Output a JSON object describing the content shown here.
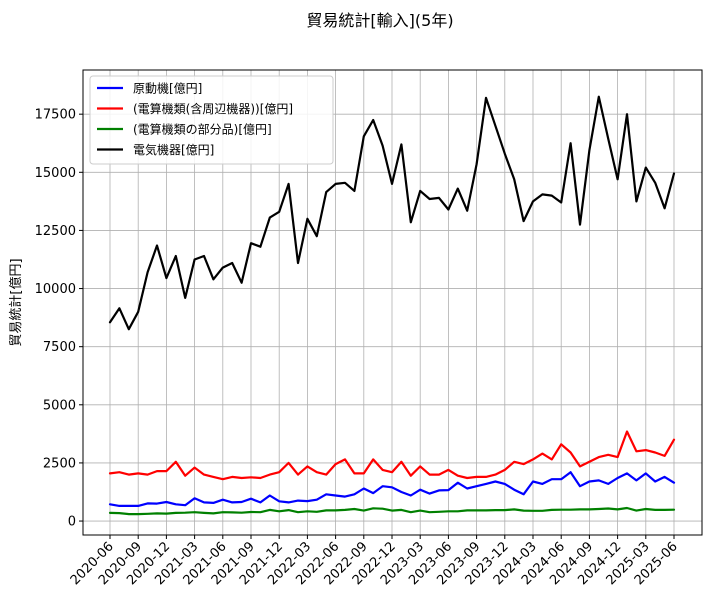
{
  "chart_data": {
    "type": "line",
    "title": "貿易統計[輸入](5年)",
    "xlabel": "",
    "ylabel": "貿易統計[億円]",
    "ylim": [
      -600,
      19400
    ],
    "yticks": [
      0,
      2500,
      5000,
      7500,
      10000,
      12500,
      15000,
      17500
    ],
    "ytick_labels": [
      "0",
      "2500",
      "5000",
      "7500",
      "10000",
      "12500",
      "15000",
      "17500"
    ],
    "xtick_labels": [
      "2020-06",
      "2020-09",
      "2020-12",
      "2021-03",
      "2021-06",
      "2021-09",
      "2021-12",
      "2022-03",
      "2022-06",
      "2022-09",
      "2022-12",
      "2023-03",
      "2023-06",
      "2023-09",
      "2023-12",
      "2024-03",
      "2024-06",
      "2024-09",
      "2024-12",
      "2025-03",
      "2025-06"
    ],
    "grid": true,
    "legend_position": "top-left",
    "x": [
      "2020-06",
      "2020-07",
      "2020-08",
      "2020-09",
      "2020-10",
      "2020-11",
      "2020-12",
      "2021-01",
      "2021-02",
      "2021-03",
      "2021-04",
      "2021-05",
      "2021-06",
      "2021-07",
      "2021-08",
      "2021-09",
      "2021-10",
      "2021-11",
      "2021-12",
      "2022-01",
      "2022-02",
      "2022-03",
      "2022-04",
      "2022-05",
      "2022-06",
      "2022-07",
      "2022-08",
      "2022-09",
      "2022-10",
      "2022-11",
      "2022-12",
      "2023-01",
      "2023-02",
      "2023-03",
      "2023-04",
      "2023-05",
      "2023-06",
      "2023-07",
      "2023-08",
      "2023-09",
      "2023-10",
      "2023-11",
      "2023-12",
      "2024-01",
      "2024-02",
      "2024-03",
      "2024-04",
      "2024-05",
      "2024-06",
      "2024-07",
      "2024-08",
      "2024-09",
      "2024-10",
      "2024-11",
      "2024-12",
      "2025-01",
      "2025-02",
      "2025-03",
      "2025-04",
      "2025-05",
      "2025-06"
    ],
    "series": [
      {
        "name": "原動機[億円]",
        "color": "#0000ff",
        "values": [
          720,
          650,
          650,
          650,
          760,
          750,
          820,
          720,
          680,
          980,
          800,
          780,
          920,
          800,
          820,
          960,
          800,
          1100,
          850,
          800,
          880,
          860,
          920,
          1150,
          1100,
          1050,
          1150,
          1400,
          1200,
          1500,
          1450,
          1250,
          1100,
          1350,
          1180,
          1320,
          1330,
          1650,
          1400,
          1500,
          1600,
          1700,
          1600,
          1350,
          1150,
          1700,
          1600,
          1800,
          1800,
          2100,
          1500,
          1700,
          1750,
          1600,
          1850,
          2050,
          1750,
          2050,
          1700,
          1900,
          1650
        ]
      },
      {
        "name": "(電算機類(含周辺機器))[億円]",
        "color": "#ff0000",
        "values": [
          2050,
          2100,
          2000,
          2050,
          2000,
          2150,
          2150,
          2550,
          1950,
          2300,
          2000,
          1900,
          1800,
          1900,
          1850,
          1880,
          1850,
          2000,
          2100,
          2500,
          2000,
          2350,
          2100,
          2000,
          2450,
          2650,
          2050,
          2050,
          2650,
          2200,
          2100,
          2550,
          1950,
          2350,
          2000,
          2000,
          2200,
          1950,
          1850,
          1900,
          1900,
          2000,
          2200,
          2550,
          2450,
          2650,
          2900,
          2650,
          3300,
          2950,
          2350,
          2550,
          2750,
          2850,
          2750,
          3850,
          3000,
          3050,
          2950,
          2800,
          3500
        ]
      },
      {
        "name": "(電算機類の部分品)[億円]",
        "color": "#008000",
        "values": [
          350,
          340,
          300,
          300,
          310,
          330,
          320,
          350,
          360,
          380,
          350,
          330,
          380,
          370,
          360,
          390,
          380,
          480,
          420,
          470,
          380,
          420,
          400,
          460,
          460,
          480,
          520,
          450,
          550,
          530,
          450,
          480,
          380,
          450,
          380,
          400,
          420,
          420,
          460,
          460,
          460,
          470,
          470,
          500,
          450,
          440,
          440,
          480,
          490,
          490,
          500,
          500,
          520,
          540,
          500,
          560,
          450,
          520,
          480,
          480,
          490
        ]
      },
      {
        "name": "電気機器[億円]",
        "color": "#000000",
        "values": [
          8550,
          9150,
          8250,
          9000,
          10700,
          11850,
          10450,
          11400,
          9600,
          11250,
          11400,
          10400,
          10900,
          11100,
          10250,
          11950,
          11800,
          13050,
          13300,
          14500,
          11100,
          13000,
          12250,
          14150,
          14500,
          14550,
          14200,
          16550,
          17250,
          16150,
          14500,
          16200,
          12850,
          14200,
          13850,
          13900,
          13400,
          14300,
          13350,
          15350,
          18200,
          17000,
          15800,
          14700,
          12900,
          13750,
          14050,
          14000,
          13700,
          16250,
          12750,
          15950,
          18250,
          16450,
          14700,
          17500,
          13750,
          15200,
          14550,
          13450,
          14950
        ]
      }
    ]
  }
}
